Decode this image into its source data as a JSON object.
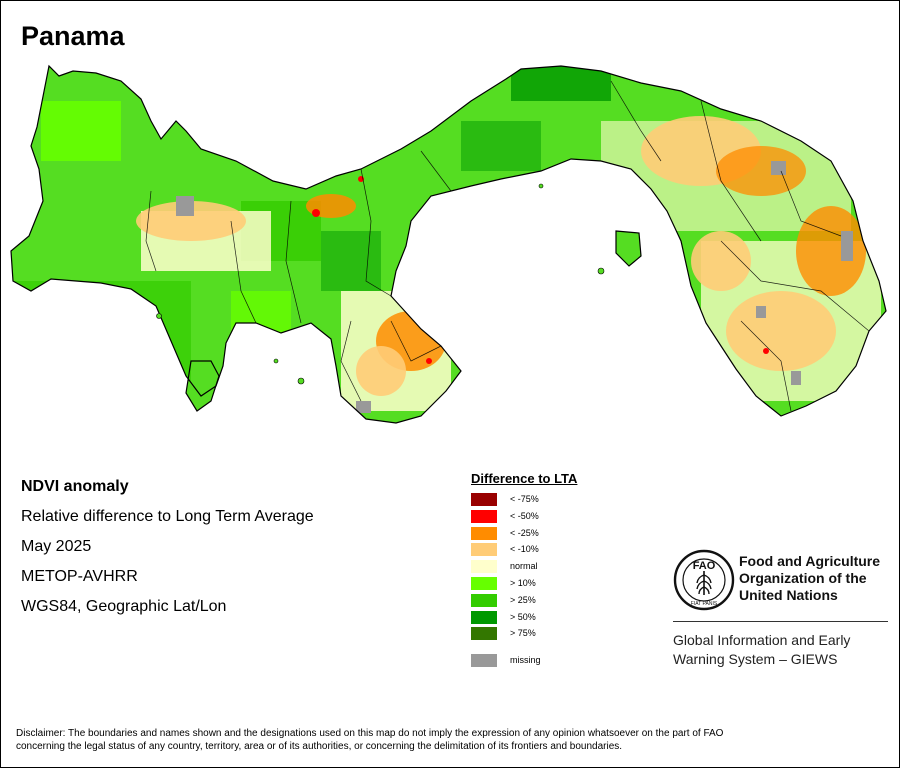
{
  "title": "Panama",
  "info": {
    "heading": "NDVI anomaly",
    "subtitle": "Relative difference to Long Term Average",
    "period": "May 2025",
    "sensor": "METOP-AVHRR",
    "projection": "WGS84, Geographic Lat/Lon"
  },
  "legend": {
    "title": "Difference to LTA",
    "items": [
      {
        "label": "< -75%",
        "color": "#990000"
      },
      {
        "label": "< -50%",
        "color": "#ff0000"
      },
      {
        "label": "< -25%",
        "color": "#ff8c00"
      },
      {
        "label": "< -10%",
        "color": "#ffcc77"
      },
      {
        "label": "normal",
        "color": "#ffffcc"
      },
      {
        "label": "> 10%",
        "color": "#66ff00"
      },
      {
        "label": "> 25%",
        "color": "#33cc00"
      },
      {
        "label": "> 50%",
        "color": "#009900"
      },
      {
        "label": "> 75%",
        "color": "#337700"
      }
    ],
    "missing": {
      "label": "missing",
      "color": "#999999"
    }
  },
  "org": {
    "name_line1": "Food and Agriculture",
    "name_line2": "Organization of the",
    "name_line3": "United Nations",
    "logo_letters": "FAO",
    "logo_motto": "FIAT PANIS",
    "system_line1": "Global Information and Early",
    "system_line2": "Warning System – GIEWS"
  },
  "disclaimer": {
    "line1": "Disclaimer: The boundaries and names shown and the designations used on this map do not imply the expression of any opinion whatsoever on the part of FAO",
    "line2": "concerning the legal status of any country, territory, area or of its authorities, or concerning the delimitation of its frontiers and boundaries."
  }
}
